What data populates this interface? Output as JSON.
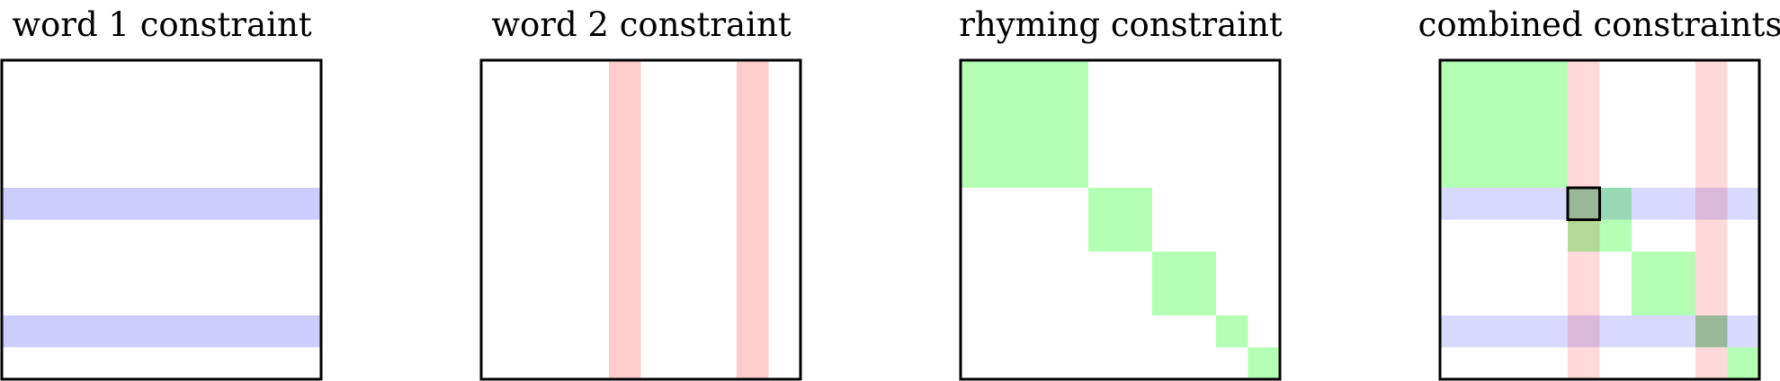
{
  "panels": [
    {
      "title": "word 1 constraint",
      "layers": [
        "rows"
      ]
    },
    {
      "title": "word 2 constraint",
      "layers": [
        "cols"
      ]
    },
    {
      "title": "rhyming constraint",
      "layers": [
        "blocks"
      ]
    },
    {
      "title": "combined constraints",
      "layers": [
        "blocks",
        "cols",
        "rows"
      ],
      "highlight_cell": {
        "row": 5,
        "col": 5
      }
    }
  ],
  "grid_units": 10,
  "word1_rows": [
    5,
    9
  ],
  "word2_cols": [
    5,
    9
  ],
  "rhyme_blocks": [
    {
      "start": 0,
      "size": 4
    },
    {
      "start": 4,
      "size": 2
    },
    {
      "start": 6,
      "size": 2
    },
    {
      "start": 8,
      "size": 1
    },
    {
      "start": 9,
      "size": 1
    }
  ],
  "colors": {
    "word1": "#ccccff",
    "word2": "#ffcccc",
    "rhyme": "#b3ffb3",
    "border": "#000000"
  }
}
